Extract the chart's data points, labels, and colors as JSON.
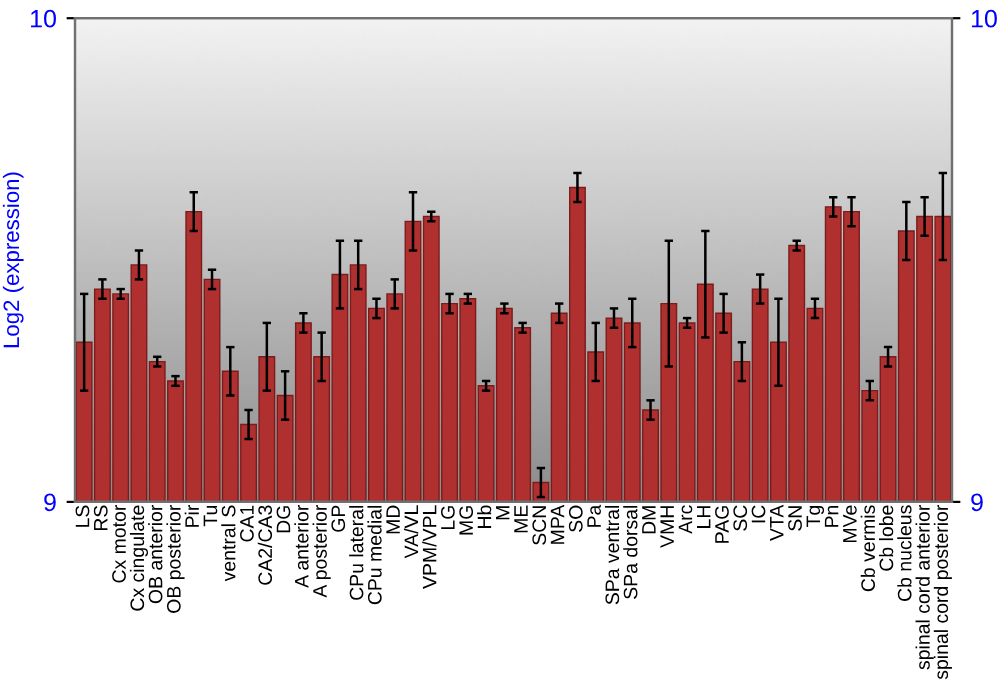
{
  "chart_data": {
    "type": "bar",
    "ylabel": "Log2 (expression)",
    "categories": [
      "LS",
      "RS",
      "Cx motor",
      "Cx cingulate",
      "OB anterior",
      "OB posterior",
      "Pir",
      "Tu",
      "ventral S",
      "CA1",
      "CA2/CA3",
      "DG",
      "A anterior",
      "A posterior",
      "GP",
      "CPu lateral",
      "CPu medial",
      "MD",
      "VA/VL",
      "VPM/VPL",
      "LG",
      "MG",
      "Hb",
      "M",
      "ME",
      "SCN",
      "MPA",
      "SO",
      "Pa",
      "SPa ventral",
      "SPa dorsal",
      "DM",
      "VMH",
      "Arc",
      "LH",
      "PAG",
      "SC",
      "IC",
      "VTA",
      "SN",
      "Tg",
      "Pn",
      "MVe",
      "Cb vermis",
      "Cb lobe",
      "Cb nucleus",
      "spinal cord anterior",
      "spinal cord posterior"
    ],
    "values": [
      9.33,
      9.44,
      9.43,
      9.49,
      9.29,
      9.25,
      9.6,
      9.46,
      9.27,
      9.16,
      9.3,
      9.22,
      9.37,
      9.3,
      9.47,
      9.49,
      9.4,
      9.43,
      9.58,
      9.59,
      9.41,
      9.42,
      9.24,
      9.4,
      9.36,
      9.04,
      9.39,
      9.65,
      9.31,
      9.38,
      9.37,
      9.19,
      9.41,
      9.37,
      9.45,
      9.39,
      9.29,
      9.44,
      9.33,
      9.53,
      9.4,
      9.61,
      9.6,
      9.23,
      9.3,
      9.56,
      9.59,
      9.59
    ],
    "errors": [
      0.1,
      0.02,
      0.01,
      0.03,
      0.01,
      0.01,
      0.04,
      0.02,
      0.05,
      0.03,
      0.07,
      0.05,
      0.02,
      0.05,
      0.07,
      0.05,
      0.02,
      0.03,
      0.06,
      0.01,
      0.02,
      0.01,
      0.01,
      0.01,
      0.01,
      0.03,
      0.02,
      0.03,
      0.06,
      0.02,
      0.05,
      0.02,
      0.13,
      0.01,
      0.11,
      0.04,
      0.04,
      0.03,
      0.09,
      0.01,
      0.02,
      0.02,
      0.03,
      0.02,
      0.02,
      0.06,
      0.04,
      0.09
    ],
    "color": "#b03030",
    "ylim": [
      9,
      10
    ],
    "yticks": [
      9,
      10
    ],
    "y2lim": [
      9,
      10
    ],
    "y2ticks": [
      9,
      10
    ],
    "grid": false
  }
}
